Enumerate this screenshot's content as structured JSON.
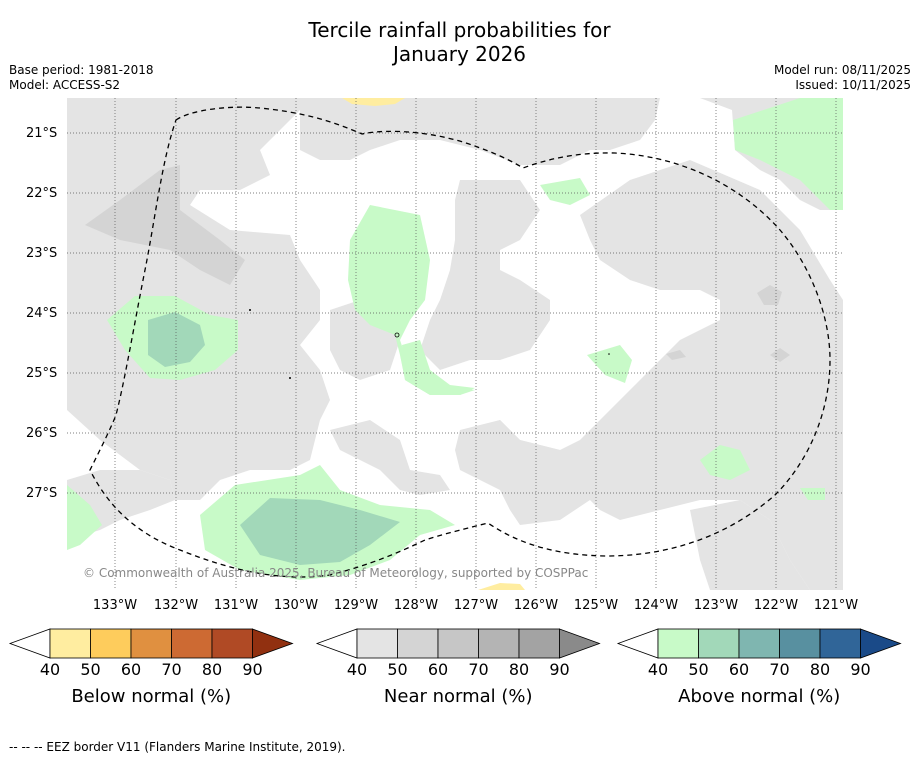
{
  "title_line1": "Tercile rainfall probabilities for",
  "title_line2": "January 2026",
  "base_period": "Base period: 1981-2018",
  "model": "Model: ACCESS-S2",
  "model_run": "Model run: 08/11/2025",
  "issued": "Issued: 10/11/2025",
  "copyright": "© Commonwealth of Australia 2025, Bureau of Meteorology, supported by COSPPac",
  "footer": "--  --  -- EEZ border V11 (Flanders Marine Institute, 2019).",
  "lat_labels": [
    "21°S",
    "22°S",
    "23°S",
    "24°S",
    "25°S",
    "26°S",
    "27°S"
  ],
  "lon_labels": [
    "133°W",
    "132°W",
    "131°W",
    "130°W",
    "129°W",
    "128°W",
    "127°W",
    "126°W",
    "125°W",
    "124°W",
    "123°W",
    "122°W",
    "121°W"
  ],
  "colorbars": [
    {
      "label": "Below normal (%)",
      "ticks": [
        "40",
        "50",
        "60",
        "70",
        "80",
        "90"
      ],
      "colors": [
        "#ffeda0",
        "#fecc5c",
        "#e09040",
        "#cd6a33",
        "#b04a25",
        "#913010"
      ]
    },
    {
      "label": "Near normal (%)",
      "ticks": [
        "40",
        "50",
        "60",
        "70",
        "80",
        "90"
      ],
      "colors": [
        "#e4e4e4",
        "#d4d4d4",
        "#c6c6c6",
        "#b4b4b4",
        "#a3a3a3",
        "#8a8a8a"
      ]
    },
    {
      "label": "Above normal (%)",
      "ticks": [
        "40",
        "50",
        "60",
        "70",
        "80",
        "90"
      ],
      "colors": [
        "#c8fac8",
        "#a2d8b9",
        "#7fb6b0",
        "#5890a0",
        "#306598",
        "#1a4a88"
      ]
    }
  ],
  "map_colors": {
    "near40": "#e4e4e4",
    "near50": "#d4d4d4",
    "above40": "#c8fac8",
    "above50": "#a2d8b9",
    "below40": "#ffeda0"
  }
}
